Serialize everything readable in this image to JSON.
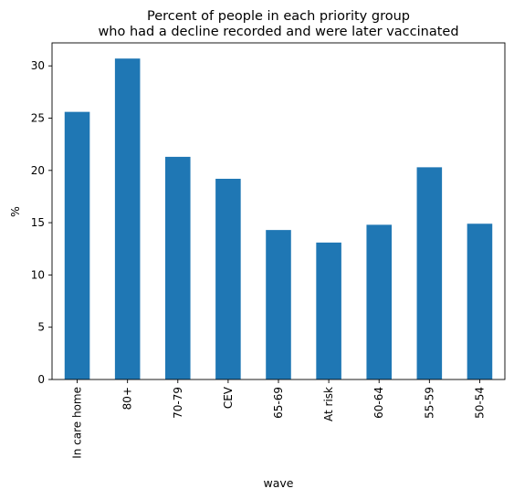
{
  "chart_data": {
    "type": "bar",
    "title_lines": [
      "Percent of people in each priority group",
      "who had a decline recorded and were later vaccinated"
    ],
    "xlabel": "wave",
    "ylabel": "%",
    "categories": [
      "In care home",
      "80+",
      "70-79",
      "CEV",
      "65-69",
      "At risk",
      "60-64",
      "55-59",
      "50-54"
    ],
    "values": [
      25.6,
      30.7,
      21.3,
      19.2,
      14.3,
      13.1,
      14.8,
      20.3,
      14.9
    ],
    "ylim": [
      0,
      32.2
    ],
    "yticks": [
      0,
      5,
      10,
      15,
      20,
      25,
      30
    ],
    "bar_color": "#1f77b4",
    "grid": false,
    "legend": "none"
  }
}
